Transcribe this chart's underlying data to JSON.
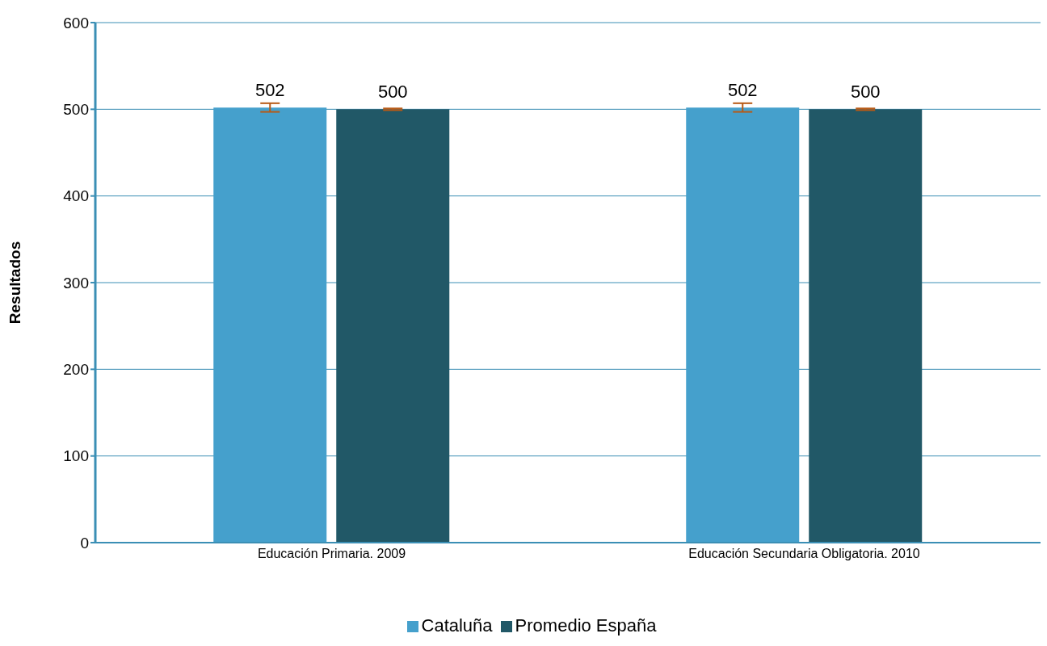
{
  "chart_data": {
    "type": "bar",
    "ylabel": "Resultados",
    "categories": [
      "Educación Primaria. 2009",
      "Educación Secundaria Obligatoria. 2010"
    ],
    "series": [
      {
        "name": "Cataluña",
        "color": "#45a0cc",
        "values": [
          502,
          502
        ],
        "errors": [
          5,
          5
        ]
      },
      {
        "name": "Promedio España",
        "color": "#215867",
        "values": [
          500,
          500
        ],
        "errors": [
          1,
          1
        ]
      }
    ],
    "ylim": [
      0,
      600
    ],
    "yticks": [
      0,
      100,
      200,
      300,
      400,
      500,
      600
    ],
    "grid": "y",
    "legend": "bottom",
    "data_labels": true
  }
}
